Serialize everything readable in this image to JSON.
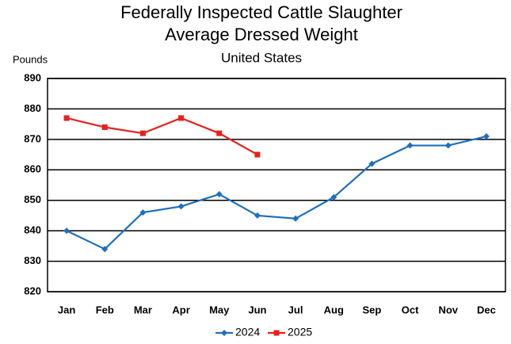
{
  "chart_data": {
    "type": "line",
    "title": [
      "Federally Inspected Cattle Slaughter",
      "Average Dressed Weight"
    ],
    "subtitle": "United States",
    "y_label": "Pounds",
    "categories": [
      "Jan",
      "Feb",
      "Mar",
      "Apr",
      "May",
      "Jun",
      "Jul",
      "Aug",
      "Sep",
      "Oct",
      "Nov",
      "Dec"
    ],
    "series": [
      {
        "name": "2024",
        "color": "#1f6fbf",
        "marker": "diamond",
        "values": [
          840,
          834,
          846,
          848,
          852,
          845,
          844,
          851,
          862,
          868,
          868,
          871
        ]
      },
      {
        "name": "2025",
        "color": "#e8201c",
        "marker": "square",
        "values": [
          877,
          874,
          872,
          877,
          872,
          865,
          null,
          null,
          null,
          null,
          null,
          null
        ]
      }
    ],
    "ylim": [
      820,
      890
    ],
    "yticks": [
      820,
      830,
      840,
      850,
      860,
      870,
      880,
      890
    ],
    "grid": true,
    "legend": "bottom"
  }
}
